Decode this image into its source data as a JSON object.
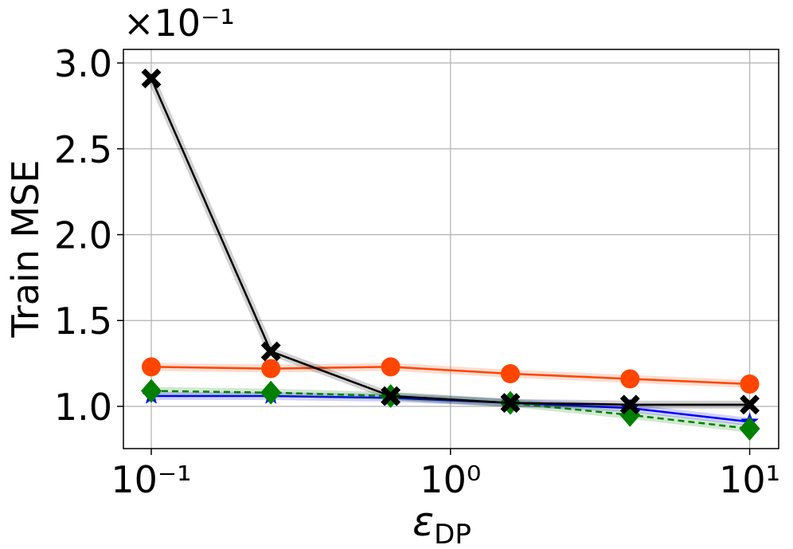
{
  "chart_data": {
    "type": "line",
    "ylabel": "Train MSE",
    "xlabel_symbol": "ε",
    "xlabel_subscript": "DP",
    "y_offset_label": "×10⁻¹",
    "xscale": "log",
    "grid": true,
    "x": [
      0.1,
      0.251,
      0.631,
      1.585,
      3.981,
      10
    ],
    "series": [
      {
        "color": "#ff4500",
        "marker": "circle",
        "linestyle": "solid",
        "values": [
          1.23,
          1.22,
          1.23,
          1.19,
          1.16,
          1.13
        ]
      },
      {
        "color": "#0000ff",
        "marker": "star",
        "linestyle": "solid",
        "values": [
          1.06,
          1.06,
          1.05,
          1.02,
          0.99,
          0.91
        ]
      },
      {
        "color": "#008000",
        "marker": "diamond",
        "linestyle": "dashed",
        "values": [
          1.09,
          1.08,
          1.06,
          1.02,
          0.95,
          0.87
        ]
      },
      {
        "color": "#000000",
        "marker": "x",
        "linestyle": "solid",
        "values": [
          2.91,
          1.32,
          1.06,
          1.02,
          1.01,
          1.01
        ]
      }
    ],
    "xlim": [
      0.0807,
      12.5
    ],
    "ylim": [
      0.754,
      3.079
    ],
    "xticks": [
      {
        "value": 0.1,
        "label": "10⁻¹"
      },
      {
        "value": 1,
        "label": "10⁰"
      },
      {
        "value": 10,
        "label": "10¹"
      }
    ],
    "yticks": [
      {
        "value": 1,
        "label": "1.0"
      },
      {
        "value": 1.5,
        "label": "1.5"
      },
      {
        "value": 2,
        "label": "2.0"
      },
      {
        "value": 2.5,
        "label": "2.5"
      },
      {
        "value": 3,
        "label": "3.0"
      }
    ]
  }
}
